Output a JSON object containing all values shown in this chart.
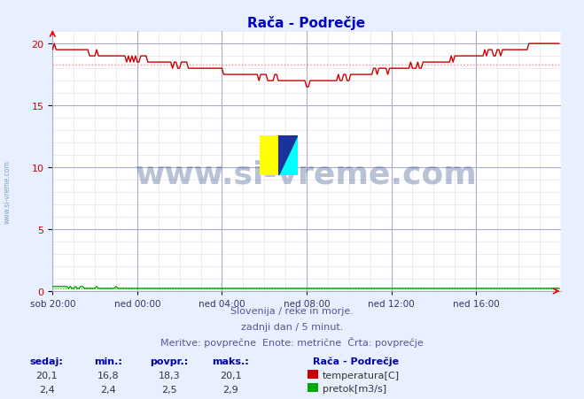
{
  "title": "Rača - Podrečje",
  "title_color": "#0000cc",
  "bg_color": "#e8f0ff",
  "plot_bg_color": "#ffffff",
  "grid_color_major": "#aaaacc",
  "grid_color_minor": "#ddddee",
  "xlim": [
    0,
    288
  ],
  "ylim": [
    0,
    21
  ],
  "yticks": [
    0,
    5,
    10,
    15,
    20
  ],
  "xtick_labels": [
    "sob 20:00",
    "ned 00:00",
    "ned 04:00",
    "ned 08:00",
    "ned 12:00",
    "ned 16:00"
  ],
  "xtick_positions": [
    0,
    48,
    96,
    144,
    192,
    240
  ],
  "avg_line_y_temp": 18.3,
  "temp_color": "#cc0000",
  "flow_color": "#00aa00",
  "avg_color": "#ff8888",
  "watermark_text": "www.si-vreme.com",
  "watermark_color": "#1a3a7a",
  "watermark_alpha": 0.3,
  "footer_line1": "Slovenija / reke in morje.",
  "footer_line2": "zadnji dan / 5 minut.",
  "footer_line3": "Meritve: povprečne  Enote: metrične  Črta: povprečje",
  "footer_color": "#555599",
  "legend_title": "Rača - Podrečje",
  "legend_items": [
    "temperatura[C]",
    "pretok[m3/s]"
  ],
  "legend_colors": [
    "#cc0000",
    "#00aa00"
  ],
  "table_headers": [
    "sedaj:",
    "min.:",
    "povpr.:",
    "maks.:"
  ],
  "table_temp": [
    "20,1",
    "16,8",
    "18,3",
    "20,1"
  ],
  "table_flow": [
    "2,4",
    "2,4",
    "2,5",
    "2,9"
  ],
  "table_color": "#0000aa",
  "sidebar_text": "www.si-vreme.com",
  "sidebar_color": "#7799bb"
}
